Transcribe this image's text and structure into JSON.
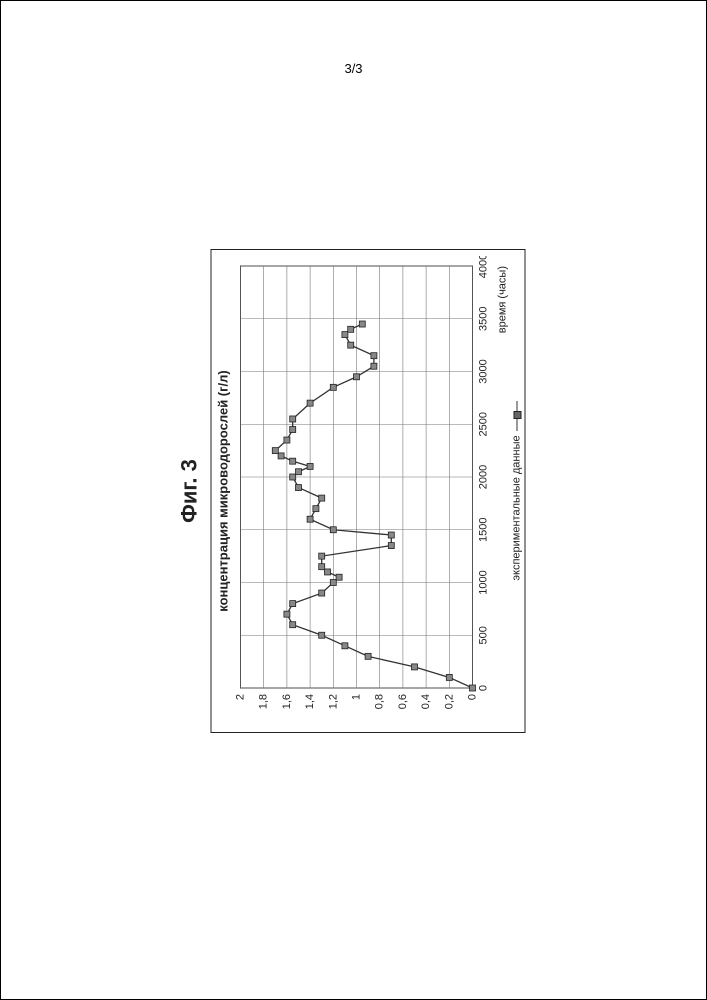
{
  "page_number": "3/3",
  "figure_label": "Фиг. 3",
  "chart": {
    "type": "line-scatter",
    "title": "концентрация микроводорослей (г/л)",
    "xlabel": "время (часы)",
    "legend_label": "экспериментальные данные",
    "xlim": [
      0,
      4000
    ],
    "ylim": [
      0,
      2
    ],
    "xticks": [
      0,
      500,
      1000,
      1500,
      2000,
      2500,
      3000,
      3500,
      4000
    ],
    "yticks": [
      0,
      0.2,
      0.4,
      0.6,
      0.8,
      1.0,
      1.2,
      1.4,
      1.6,
      1.8,
      2.0
    ],
    "ytick_labels": [
      "0",
      "0,2",
      "0,4",
      "0,6",
      "0,8",
      "1",
      "1,2",
      "1,4",
      "1,6",
      "1,8",
      "2"
    ],
    "grid_color": "#777777",
    "axis_color": "#222222",
    "background_color": "#ffffff",
    "line_color": "#333333",
    "line_width": 1.3,
    "marker_fill": "#888888",
    "marker_stroke": "#222222",
    "marker_size": 6,
    "label_fontsize": 11,
    "title_fontsize": 13,
    "points": [
      [
        0,
        0.0
      ],
      [
        100,
        0.2
      ],
      [
        200,
        0.5
      ],
      [
        300,
        0.9
      ],
      [
        400,
        1.1
      ],
      [
        500,
        1.3
      ],
      [
        600,
        1.55
      ],
      [
        700,
        1.6
      ],
      [
        800,
        1.55
      ],
      [
        900,
        1.3
      ],
      [
        1000,
        1.2
      ],
      [
        1050,
        1.15
      ],
      [
        1100,
        1.25
      ],
      [
        1150,
        1.3
      ],
      [
        1250,
        1.3
      ],
      [
        1350,
        0.7
      ],
      [
        1450,
        0.7
      ],
      [
        1500,
        1.2
      ],
      [
        1600,
        1.4
      ],
      [
        1700,
        1.35
      ],
      [
        1800,
        1.3
      ],
      [
        1900,
        1.5
      ],
      [
        2000,
        1.55
      ],
      [
        2050,
        1.5
      ],
      [
        2100,
        1.4
      ],
      [
        2150,
        1.55
      ],
      [
        2200,
        1.65
      ],
      [
        2250,
        1.7
      ],
      [
        2350,
        1.6
      ],
      [
        2450,
        1.55
      ],
      [
        2550,
        1.55
      ],
      [
        2700,
        1.4
      ],
      [
        2850,
        1.2
      ],
      [
        2950,
        1.0
      ],
      [
        3050,
        0.85
      ],
      [
        3150,
        0.85
      ],
      [
        3250,
        1.05
      ],
      [
        3350,
        1.1
      ],
      [
        3400,
        1.05
      ],
      [
        3450,
        0.95
      ]
    ]
  }
}
